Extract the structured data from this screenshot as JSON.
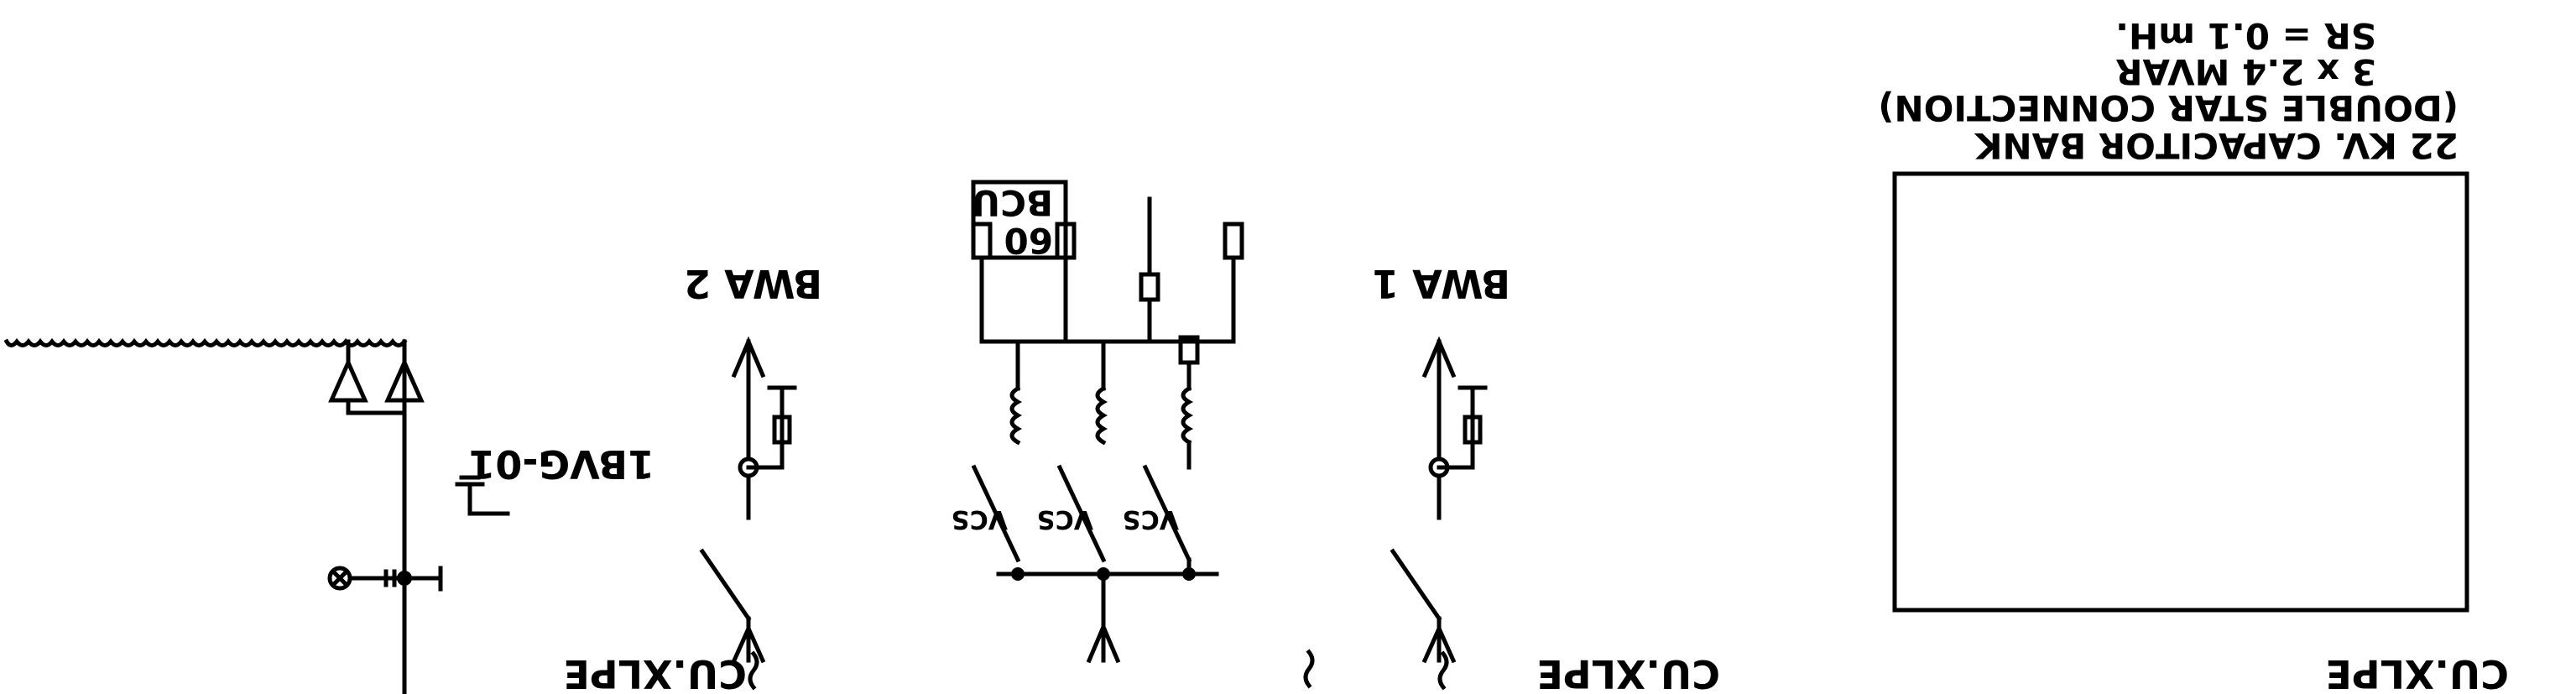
{
  "diagram": {
    "capacitor_bank": {
      "title_line1": "22 KV. CAPACITOR BANK",
      "title_line2": "(DOUBLE STAR CONNECTION)",
      "rating": "3 x 2.4 MVAR",
      "reactor": "SR = 0.1 mH.",
      "relay_label": "BCU",
      "relay_code": "60",
      "switch_label": "VCS",
      "cable_label": "CU.XLPE"
    },
    "feeders": [
      {
        "name": "BWA 1",
        "cable_label": "CU.XLPE"
      },
      {
        "name": "BWA 2",
        "cable_label": "CU.XLPE"
      }
    ],
    "bay": {
      "name": "1BVG-01"
    }
  }
}
